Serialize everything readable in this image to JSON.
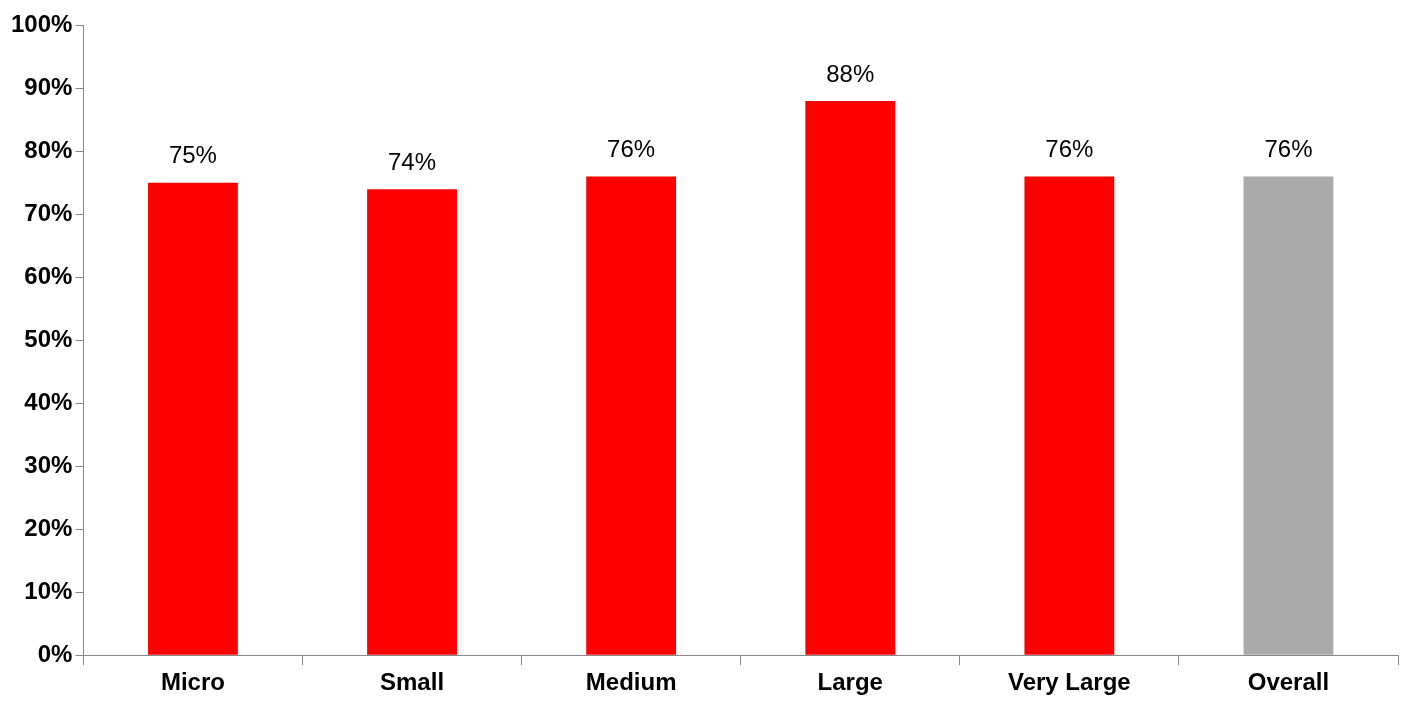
{
  "chart_data": {
    "type": "bar",
    "categories": [
      "Micro",
      "Small",
      "Medium",
      "Large",
      "Very Large",
      "Overall"
    ],
    "values": [
      75,
      74,
      76,
      88,
      76,
      76
    ],
    "colors": [
      "#ff0000",
      "#ff0000",
      "#ff0000",
      "#ff0000",
      "#ff0000",
      "#aaaaaa"
    ],
    "value_labels": [
      "75%",
      "74%",
      "76%",
      "88%",
      "76%",
      "76%"
    ],
    "ylim": [
      0,
      100
    ],
    "yticks": [
      {
        "value": 0,
        "label": "0%"
      },
      {
        "value": 10,
        "label": "10%"
      },
      {
        "value": 20,
        "label": "20%"
      },
      {
        "value": 30,
        "label": "30%"
      },
      {
        "value": 40,
        "label": "40%"
      },
      {
        "value": 50,
        "label": "50%"
      },
      {
        "value": 60,
        "label": "60%"
      },
      {
        "value": 70,
        "label": "70%"
      },
      {
        "value": 80,
        "label": "80%"
      },
      {
        "value": 90,
        "label": "90%"
      },
      {
        "value": 100,
        "label": "100%"
      }
    ],
    "grid": false,
    "legend": false
  }
}
